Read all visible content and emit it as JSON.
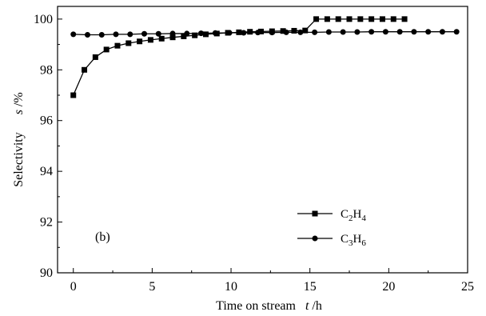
{
  "chart_data": {
    "type": "line",
    "xlabel": {
      "main": "Time on stream",
      "symbol": "t",
      "unit": " /h"
    },
    "ylabel": {
      "main": "Selectivity",
      "symbol": "s",
      "unit": " /%"
    },
    "xlim": [
      -1,
      25
    ],
    "ylim": [
      90,
      100.5
    ],
    "xticks": [
      0,
      5,
      10,
      15,
      20,
      25
    ],
    "yticks": [
      90,
      92,
      94,
      96,
      98,
      100
    ],
    "grid": false,
    "legend_position": "bottom-right",
    "annotation": "(b)",
    "series": [
      {
        "name": "C2H4",
        "label_parts": [
          [
            "C",
            "n"
          ],
          [
            "2",
            "sub"
          ],
          [
            "H",
            "n"
          ],
          [
            "4",
            "sub"
          ]
        ],
        "marker": "square",
        "color": "#000000",
        "x": [
          0,
          0.7,
          1.4,
          2.1,
          2.8,
          3.5,
          4.2,
          4.9,
          5.6,
          6.3,
          7.0,
          7.7,
          8.4,
          9.1,
          9.8,
          10.5,
          11.2,
          11.9,
          12.6,
          13.3,
          14.0,
          14.7,
          15.4,
          16.1,
          16.8,
          17.5,
          18.2,
          18.9,
          19.6,
          20.3,
          21.0
        ],
        "y": [
          97.0,
          98.0,
          98.5,
          98.8,
          98.95,
          99.05,
          99.12,
          99.18,
          99.23,
          99.28,
          99.32,
          99.36,
          99.4,
          99.43,
          99.46,
          99.48,
          99.5,
          99.51,
          99.52,
          99.53,
          99.54,
          99.55,
          100.0,
          100.0,
          100.0,
          100.0,
          100.0,
          100.0,
          100.0,
          100.0,
          100.0
        ]
      },
      {
        "name": "C3H6",
        "label_parts": [
          [
            "C",
            "n"
          ],
          [
            "3",
            "sub"
          ],
          [
            "H",
            "n"
          ],
          [
            "6",
            "sub"
          ]
        ],
        "marker": "circle",
        "color": "#000000",
        "x": [
          0,
          0.9,
          1.8,
          2.7,
          3.6,
          4.5,
          5.4,
          6.3,
          7.2,
          8.1,
          9.0,
          9.9,
          10.8,
          11.7,
          12.6,
          13.5,
          14.4,
          15.3,
          16.2,
          17.1,
          18.0,
          18.9,
          19.8,
          20.7,
          21.6,
          22.5,
          23.4,
          24.3
        ],
        "y": [
          99.4,
          99.38,
          99.38,
          99.4,
          99.4,
          99.42,
          99.42,
          99.43,
          99.43,
          99.44,
          99.45,
          99.46,
          99.46,
          99.47,
          99.47,
          99.48,
          99.48,
          99.48,
          99.49,
          99.49,
          99.49,
          99.5,
          99.5,
          99.5,
          99.5,
          99.5,
          99.5,
          99.5
        ]
      }
    ]
  }
}
